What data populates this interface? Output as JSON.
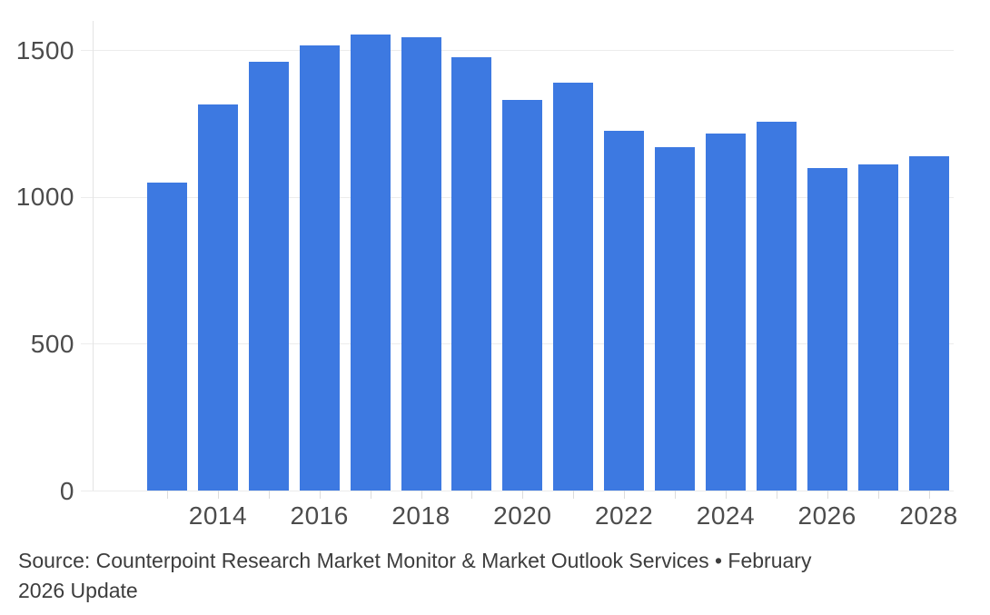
{
  "chart_data": {
    "type": "bar",
    "title": "",
    "xlabel": "",
    "ylabel": "",
    "categories": [
      2013,
      2014,
      2015,
      2016,
      2017,
      2018,
      2019,
      2020,
      2021,
      2022,
      2023,
      2024,
      2025,
      2026,
      2027,
      2028
    ],
    "values": [
      1050,
      1315,
      1460,
      1515,
      1555,
      1545,
      1475,
      1330,
      1390,
      1225,
      1170,
      1215,
      1255,
      1100,
      1110,
      1140
    ],
    "ylim": [
      0,
      1600
    ],
    "yticks": [
      0,
      500,
      1000,
      1500
    ],
    "ytick_labels": [
      "0",
      "500",
      "1000",
      "1500"
    ],
    "xtick_labels": [
      "2014",
      "2016",
      "2018",
      "2020",
      "2022",
      "2024",
      "2026",
      "2028"
    ],
    "xtick_label_every_years_divisible_by": 2,
    "grid": true,
    "legend": false,
    "bar_color": "#3d79e1",
    "gridline_color": "#ececec",
    "axis_label_color": "#4c4c4c"
  },
  "source": {
    "line1": "Source: Counterpoint Research Market Monitor & Market Outlook Services • February",
    "line2": "2026 Update"
  }
}
